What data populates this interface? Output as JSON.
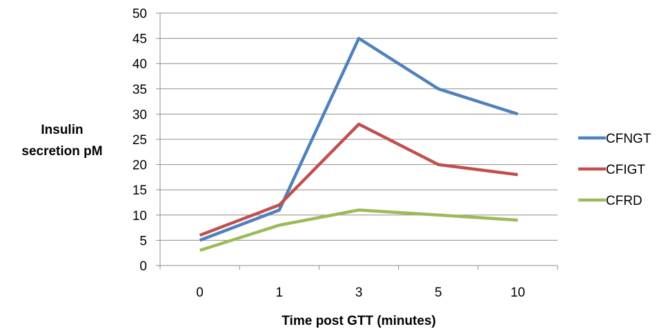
{
  "chart_data": {
    "type": "line",
    "categories": [
      "0",
      "1",
      "3",
      "5",
      "10"
    ],
    "series": [
      {
        "name": "CFNGT",
        "values": [
          5,
          11,
          45,
          35,
          30
        ],
        "color": "#4f81bd"
      },
      {
        "name": "CFIGT",
        "values": [
          6,
          12,
          28,
          20,
          18
        ],
        "color": "#c0504d"
      },
      {
        "name": "CFRD",
        "values": [
          3,
          8,
          11,
          10,
          9
        ],
        "color": "#9bbb59"
      }
    ],
    "xlabel": "Time post GTT (minutes)",
    "ylabel_lines": [
      "Insulin",
      "secretion pM"
    ],
    "ylim": [
      0,
      50
    ],
    "yticks": [
      0,
      5,
      10,
      15,
      20,
      25,
      30,
      35,
      40,
      45,
      50
    ],
    "grid": true,
    "legend_position": "right"
  }
}
